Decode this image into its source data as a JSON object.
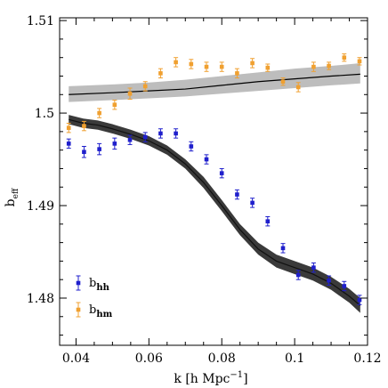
{
  "chart_data": {
    "type": "scatter",
    "xlabel": "k [h Mpc",
    "xlabel_sup": "−1",
    "xlabel_end": "]",
    "ylabel": "b",
    "ylabel_sub": "eff",
    "xlim": [
      0.0355,
      0.12
    ],
    "ylim": [
      1.4749,
      1.5103
    ],
    "x_ticks": [
      0.04,
      0.06,
      0.08,
      0.1,
      0.12
    ],
    "x_tick_labels": [
      "0.04",
      "0.06",
      "0.08",
      "0.1",
      "0.12"
    ],
    "y_ticks": [
      1.48,
      1.49,
      1.5,
      1.51
    ],
    "y_tick_labels": [
      "1.48",
      "1.49",
      "1.5",
      "1.51"
    ],
    "grid": false,
    "legend_position": "bottom-left",
    "series": [
      {
        "name": "b",
        "name_sub": "hh",
        "color": "#1f1fcc",
        "marker": "square",
        "points": [
          {
            "x": 0.038,
            "y": 1.4967,
            "err": 0.0005
          },
          {
            "x": 0.0422,
            "y": 1.4958,
            "err": 0.0006
          },
          {
            "x": 0.0464,
            "y": 1.4961,
            "err": 0.0006
          },
          {
            "x": 0.0506,
            "y": 1.4967,
            "err": 0.0006
          },
          {
            "x": 0.0548,
            "y": 1.4971,
            "err": 0.0005
          },
          {
            "x": 0.059,
            "y": 1.4974,
            "err": 0.0005
          },
          {
            "x": 0.0632,
            "y": 1.4978,
            "err": 0.0005
          },
          {
            "x": 0.0674,
            "y": 1.4978,
            "err": 0.0005
          },
          {
            "x": 0.0716,
            "y": 1.4964,
            "err": 0.0005
          },
          {
            "x": 0.0758,
            "y": 1.495,
            "err": 0.0005
          },
          {
            "x": 0.08,
            "y": 1.4935,
            "err": 0.0005
          },
          {
            "x": 0.0842,
            "y": 1.4912,
            "err": 0.0005
          },
          {
            "x": 0.0884,
            "y": 1.4903,
            "err": 0.0005
          },
          {
            "x": 0.0926,
            "y": 1.4883,
            "err": 0.0005
          },
          {
            "x": 0.0968,
            "y": 1.4854,
            "err": 0.0005
          },
          {
            "x": 0.101,
            "y": 1.4825,
            "err": 0.0005
          },
          {
            "x": 0.1052,
            "y": 1.4833,
            "err": 0.0005
          },
          {
            "x": 0.1094,
            "y": 1.4819,
            "err": 0.0005
          },
          {
            "x": 0.1136,
            "y": 1.4813,
            "err": 0.0005
          },
          {
            "x": 0.1178,
            "y": 1.4798,
            "err": 0.0005
          }
        ]
      },
      {
        "name": "b",
        "name_sub": "hm",
        "color": "#f0a030",
        "marker": "square",
        "points": [
          {
            "x": 0.038,
            "y": 1.4984,
            "err": 0.0005
          },
          {
            "x": 0.0422,
            "y": 1.4986,
            "err": 0.0005
          },
          {
            "x": 0.0464,
            "y": 1.5,
            "err": 0.0005
          },
          {
            "x": 0.0506,
            "y": 1.5009,
            "err": 0.0005
          },
          {
            "x": 0.0548,
            "y": 1.5021,
            "err": 0.0006
          },
          {
            "x": 0.059,
            "y": 1.5029,
            "err": 0.0005
          },
          {
            "x": 0.0632,
            "y": 1.5043,
            "err": 0.0005
          },
          {
            "x": 0.0674,
            "y": 1.5055,
            "err": 0.0005
          },
          {
            "x": 0.0716,
            "y": 1.5053,
            "err": 0.0005
          },
          {
            "x": 0.0758,
            "y": 1.505,
            "err": 0.0005
          },
          {
            "x": 0.08,
            "y": 1.505,
            "err": 0.0005
          },
          {
            "x": 0.0842,
            "y": 1.5043,
            "err": 0.0005
          },
          {
            "x": 0.0884,
            "y": 1.5054,
            "err": 0.0005
          },
          {
            "x": 0.0926,
            "y": 1.5049,
            "err": 0.0004
          },
          {
            "x": 0.0968,
            "y": 1.5034,
            "err": 0.0004
          },
          {
            "x": 0.101,
            "y": 1.5028,
            "err": 0.0005
          },
          {
            "x": 0.1052,
            "y": 1.505,
            "err": 0.0005
          },
          {
            "x": 0.1094,
            "y": 1.5051,
            "err": 0.0004
          },
          {
            "x": 0.1136,
            "y": 1.506,
            "err": 0.0004
          },
          {
            "x": 0.1178,
            "y": 1.5056,
            "err": 0.0004
          }
        ]
      }
    ],
    "bands": [
      {
        "kind": "hm-model",
        "fill": "#bdbdbd",
        "line_color": "#000000",
        "points": [
          {
            "x": 0.038,
            "y": 1.502,
            "lo": 1.5012,
            "hi": 1.5029
          },
          {
            "x": 0.05,
            "y": 1.5022,
            "lo": 1.5014,
            "hi": 1.5031
          },
          {
            "x": 0.06,
            "y": 1.5024,
            "lo": 1.5016,
            "hi": 1.5033
          },
          {
            "x": 0.07,
            "y": 1.5026,
            "lo": 1.5018,
            "hi": 1.5036
          },
          {
            "x": 0.08,
            "y": 1.503,
            "lo": 1.5021,
            "hi": 1.504
          },
          {
            "x": 0.09,
            "y": 1.5034,
            "lo": 1.5024,
            "hi": 1.5044
          },
          {
            "x": 0.1,
            "y": 1.5037,
            "lo": 1.5027,
            "hi": 1.5048
          },
          {
            "x": 0.11,
            "y": 1.504,
            "lo": 1.503,
            "hi": 1.5051
          },
          {
            "x": 0.118,
            "y": 1.5042,
            "lo": 1.5032,
            "hi": 1.5054
          }
        ]
      },
      {
        "kind": "hh-model",
        "fill": "#3a3a3a",
        "line_color": "#111111",
        "points": [
          {
            "x": 0.038,
            "y": 1.4993,
            "lo": 1.4988,
            "hi": 1.4998
          },
          {
            "x": 0.042,
            "y": 1.4989,
            "lo": 1.4984,
            "hi": 1.4994
          },
          {
            "x": 0.046,
            "y": 1.4987,
            "lo": 1.4982,
            "hi": 1.4992
          },
          {
            "x": 0.05,
            "y": 1.4983,
            "lo": 1.4978,
            "hi": 1.4988
          },
          {
            "x": 0.055,
            "y": 1.4977,
            "lo": 1.4972,
            "hi": 1.4982
          },
          {
            "x": 0.06,
            "y": 1.497,
            "lo": 1.4965,
            "hi": 1.4975
          },
          {
            "x": 0.065,
            "y": 1.496,
            "lo": 1.4955,
            "hi": 1.4965
          },
          {
            "x": 0.07,
            "y": 1.4945,
            "lo": 1.494,
            "hi": 1.495
          },
          {
            "x": 0.075,
            "y": 1.4925,
            "lo": 1.4919,
            "hi": 1.4931
          },
          {
            "x": 0.08,
            "y": 1.49,
            "lo": 1.4894,
            "hi": 1.4906
          },
          {
            "x": 0.085,
            "y": 1.4874,
            "lo": 1.4868,
            "hi": 1.488
          },
          {
            "x": 0.09,
            "y": 1.4853,
            "lo": 1.4847,
            "hi": 1.486
          },
          {
            "x": 0.095,
            "y": 1.484,
            "lo": 1.4833,
            "hi": 1.4847
          },
          {
            "x": 0.1,
            "y": 1.4833,
            "lo": 1.4826,
            "hi": 1.484
          },
          {
            "x": 0.105,
            "y": 1.4826,
            "lo": 1.4819,
            "hi": 1.4833
          },
          {
            "x": 0.11,
            "y": 1.4816,
            "lo": 1.4809,
            "hi": 1.4823
          },
          {
            "x": 0.115,
            "y": 1.4802,
            "lo": 1.4795,
            "hi": 1.481
          },
          {
            "x": 0.118,
            "y": 1.4792,
            "lo": 1.4784,
            "hi": 1.48
          }
        ]
      }
    ]
  }
}
